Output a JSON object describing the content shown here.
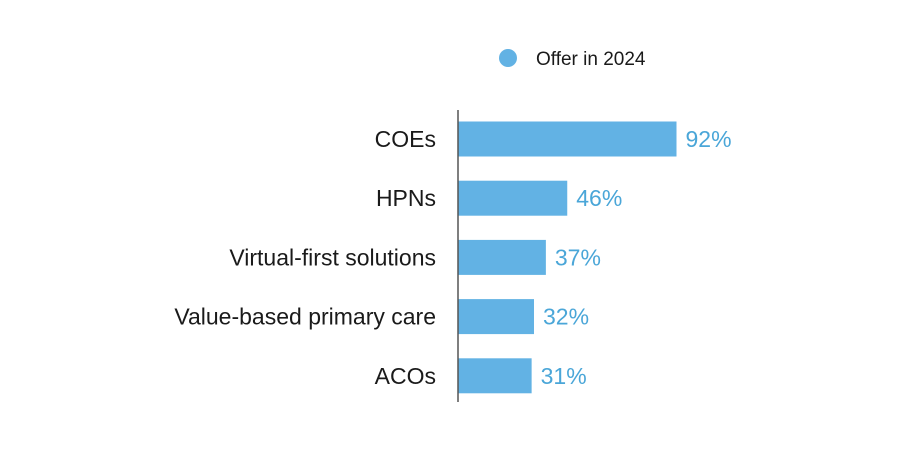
{
  "chart_data": {
    "type": "bar",
    "orientation": "horizontal",
    "categories": [
      "COEs",
      "HPNs",
      "Virtual-first solutions",
      "Value-based primary care",
      "ACOs"
    ],
    "series": [
      {
        "name": "Offer in 2024",
        "values": [
          92,
          46,
          37,
          32,
          31
        ],
        "value_labels": [
          "92%",
          "46%",
          "37%",
          "32%",
          "31%"
        ],
        "color": "#62B2E4"
      }
    ],
    "value_unit": "%",
    "xlim": [
      0,
      100
    ],
    "grid": false,
    "legend_position": "top-right",
    "colors": {
      "bar": "#62B2E4",
      "value_label": "#4AA6D8",
      "category_label": "#1a1a1a",
      "axis": "#555555"
    }
  }
}
